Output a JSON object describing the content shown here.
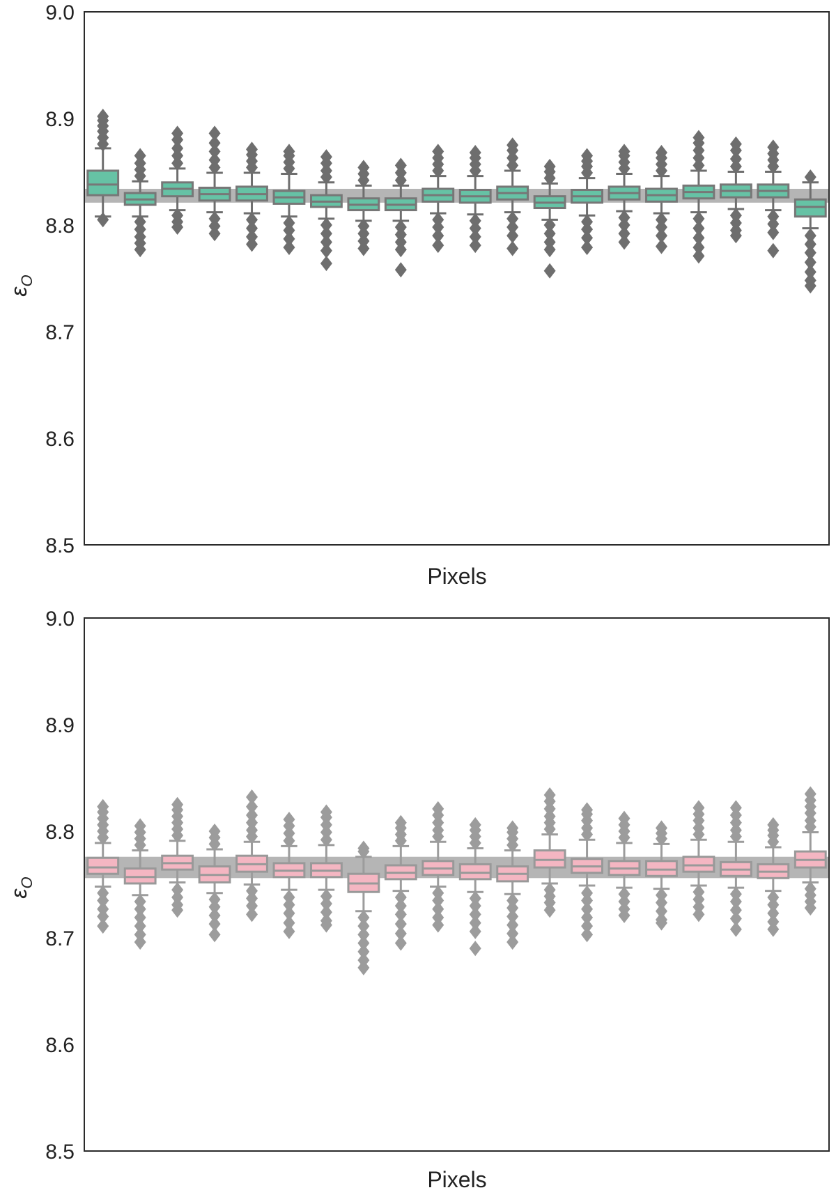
{
  "colors": {
    "grid_band": "#a8a8a8",
    "axis": "#2a2a2a",
    "whisker_top": "#6e6e6e",
    "whisker_bottom": "#9c9c9c",
    "box_fill_top": "#66c2a5",
    "box_fill_bottom": "#f4b6c2",
    "box_edge_top": "#777777",
    "box_edge_bottom": "#999999"
  },
  "chart_data": [
    {
      "type": "box",
      "title": "",
      "xlabel": "Pixels",
      "ylabel": "ε",
      "ylabel_sub": "O",
      "ylim": [
        8.5,
        9.0
      ],
      "yticks": [
        "8.5",
        "8.6",
        "8.7",
        "8.8",
        "8.9",
        "9.0"
      ],
      "xticks": [],
      "grid": false,
      "reference_band": [
        8.821,
        8.834
      ],
      "box_color": "#66c2a5",
      "boxes": [
        {
          "q1": 8.828,
          "median": 8.838,
          "q3": 8.851,
          "whislo": 8.808,
          "whishi": 8.872,
          "fliers_low": [
            8.805
          ],
          "fliers_high": [
            8.876,
            8.882,
            8.888,
            8.893,
            8.898,
            8.902
          ]
        },
        {
          "q1": 8.819,
          "median": 8.824,
          "q3": 8.83,
          "whislo": 8.808,
          "whishi": 8.841,
          "fliers_low": [
            8.803,
            8.796,
            8.789,
            8.783,
            8.777
          ],
          "fliers_high": [
            8.846,
            8.852,
            8.858,
            8.865
          ]
        },
        {
          "q1": 8.827,
          "median": 8.834,
          "q3": 8.84,
          "whislo": 8.814,
          "whishi": 8.853,
          "fliers_low": [
            8.809,
            8.803,
            8.798
          ],
          "fliers_high": [
            8.858,
            8.865,
            8.872,
            8.88,
            8.886
          ]
        },
        {
          "q1": 8.823,
          "median": 8.829,
          "q3": 8.835,
          "whislo": 8.812,
          "whishi": 8.849,
          "fliers_low": [
            8.806,
            8.799,
            8.792
          ],
          "fliers_high": [
            8.854,
            8.861,
            8.869,
            8.877,
            8.886
          ]
        },
        {
          "q1": 8.823,
          "median": 8.829,
          "q3": 8.836,
          "whislo": 8.811,
          "whishi": 8.849,
          "fliers_low": [
            8.805,
            8.797,
            8.789,
            8.782
          ],
          "fliers_high": [
            8.854,
            8.86,
            8.866,
            8.871
          ]
        },
        {
          "q1": 8.82,
          "median": 8.826,
          "q3": 8.832,
          "whislo": 8.808,
          "whishi": 8.848,
          "fliers_low": [
            8.802,
            8.795,
            8.787,
            8.779
          ],
          "fliers_high": [
            8.853,
            8.859,
            8.865,
            8.869
          ]
        },
        {
          "q1": 8.817,
          "median": 8.822,
          "q3": 8.828,
          "whislo": 8.806,
          "whishi": 8.84,
          "fliers_low": [
            8.8,
            8.792,
            8.784,
            8.776,
            8.764
          ],
          "fliers_high": [
            8.845,
            8.851,
            8.858,
            8.864
          ]
        },
        {
          "q1": 8.814,
          "median": 8.819,
          "q3": 8.825,
          "whislo": 8.804,
          "whishi": 8.837,
          "fliers_low": [
            8.799,
            8.792,
            8.785,
            8.778
          ],
          "fliers_high": [
            8.842,
            8.848,
            8.854
          ]
        },
        {
          "q1": 8.814,
          "median": 8.819,
          "q3": 8.825,
          "whislo": 8.804,
          "whishi": 8.837,
          "fliers_low": [
            8.798,
            8.791,
            8.784,
            8.777,
            8.758
          ],
          "fliers_high": [
            8.842,
            8.849,
            8.856
          ]
        },
        {
          "q1": 8.822,
          "median": 8.828,
          "q3": 8.834,
          "whislo": 8.811,
          "whishi": 8.846,
          "fliers_low": [
            8.805,
            8.798,
            8.79,
            8.781
          ],
          "fliers_high": [
            8.851,
            8.857,
            8.863,
            8.869
          ]
        },
        {
          "q1": 8.821,
          "median": 8.827,
          "q3": 8.833,
          "whislo": 8.81,
          "whishi": 8.846,
          "fliers_low": [
            8.804,
            8.797,
            8.789,
            8.781
          ],
          "fliers_high": [
            8.851,
            8.857,
            8.863,
            8.868
          ]
        },
        {
          "q1": 8.824,
          "median": 8.83,
          "q3": 8.836,
          "whislo": 8.812,
          "whishi": 8.851,
          "fliers_low": [
            8.806,
            8.798,
            8.79,
            8.778
          ],
          "fliers_high": [
            8.856,
            8.863,
            8.87,
            8.875
          ]
        },
        {
          "q1": 8.816,
          "median": 8.821,
          "q3": 8.827,
          "whislo": 8.805,
          "whishi": 8.839,
          "fliers_low": [
            8.8,
            8.792,
            8.784,
            8.777,
            8.757
          ],
          "fliers_high": [
            8.844,
            8.85,
            8.855
          ]
        },
        {
          "q1": 8.821,
          "median": 8.827,
          "q3": 8.833,
          "whislo": 8.809,
          "whishi": 8.844,
          "fliers_low": [
            8.803,
            8.796,
            8.788,
            8.779
          ],
          "fliers_high": [
            8.849,
            8.855,
            8.86,
            8.865
          ]
        },
        {
          "q1": 8.824,
          "median": 8.83,
          "q3": 8.836,
          "whislo": 8.813,
          "whishi": 8.848,
          "fliers_low": [
            8.807,
            8.8,
            8.792,
            8.784
          ],
          "fliers_high": [
            8.853,
            8.859,
            8.865,
            8.869
          ]
        },
        {
          "q1": 8.822,
          "median": 8.828,
          "q3": 8.834,
          "whislo": 8.811,
          "whishi": 8.846,
          "fliers_low": [
            8.805,
            8.798,
            8.79,
            8.78
          ],
          "fliers_high": [
            8.851,
            8.857,
            8.863,
            8.868
          ]
        },
        {
          "q1": 8.825,
          "median": 8.831,
          "q3": 8.837,
          "whislo": 8.812,
          "whishi": 8.851,
          "fliers_low": [
            8.806,
            8.797,
            8.788,
            8.779,
            8.771
          ],
          "fliers_high": [
            8.856,
            8.863,
            8.87,
            8.877,
            8.882
          ]
        },
        {
          "q1": 8.826,
          "median": 8.832,
          "q3": 8.838,
          "whislo": 8.815,
          "whishi": 8.85,
          "fliers_low": [
            8.809,
            8.802,
            8.795,
            8.79
          ],
          "fliers_high": [
            8.855,
            8.862,
            8.87,
            8.876
          ]
        },
        {
          "q1": 8.826,
          "median": 8.832,
          "q3": 8.838,
          "whislo": 8.814,
          "whishi": 8.85,
          "fliers_low": [
            8.808,
            8.801,
            8.793,
            8.776
          ],
          "fliers_high": [
            8.855,
            8.861,
            8.867,
            8.873
          ]
        },
        {
          "q1": 8.808,
          "median": 8.817,
          "q3": 8.824,
          "whislo": 8.797,
          "whishi": 8.84,
          "fliers_low": [
            8.79,
            8.782,
            8.774,
            8.765,
            8.756,
            8.748,
            8.743
          ],
          "fliers_high": [
            8.845
          ]
        }
      ]
    },
    {
      "type": "box",
      "title": "",
      "xlabel": "Pixels",
      "ylabel": "ε",
      "ylabel_sub": "O",
      "ylim": [
        8.5,
        9.0
      ],
      "yticks": [
        "8.5",
        "8.6",
        "8.7",
        "8.8",
        "8.9",
        "9.0"
      ],
      "xticks": [],
      "grid": false,
      "reference_band": [
        8.756,
        8.776
      ],
      "box_color": "#f4b6c2",
      "boxes": [
        {
          "q1": 8.76,
          "median": 8.766,
          "q3": 8.775,
          "whislo": 8.748,
          "whishi": 8.789,
          "fliers_low": [
            8.742,
            8.735,
            8.727,
            8.72,
            8.711
          ],
          "fliers_high": [
            8.794,
            8.8,
            8.806,
            8.812,
            8.818,
            8.823
          ]
        },
        {
          "q1": 8.751,
          "median": 8.757,
          "q3": 8.765,
          "whislo": 8.74,
          "whishi": 8.782,
          "fliers_low": [
            8.734,
            8.727,
            8.719,
            8.711,
            8.703,
            8.696
          ],
          "fliers_high": [
            8.787,
            8.793,
            8.799,
            8.805
          ]
        },
        {
          "q1": 8.764,
          "median": 8.77,
          "q3": 8.777,
          "whislo": 8.752,
          "whishi": 8.791,
          "fliers_low": [
            8.745,
            8.738,
            8.731,
            8.726
          ],
          "fliers_high": [
            8.796,
            8.802,
            8.808,
            8.814,
            8.82,
            8.825
          ]
        },
        {
          "q1": 8.752,
          "median": 8.759,
          "q3": 8.767,
          "whislo": 8.742,
          "whishi": 8.783,
          "fliers_low": [
            8.736,
            8.729,
            8.721,
            8.713,
            8.703
          ],
          "fliers_high": [
            8.788,
            8.794,
            8.8
          ]
        },
        {
          "q1": 8.762,
          "median": 8.769,
          "q3": 8.777,
          "whislo": 8.75,
          "whishi": 8.79,
          "fliers_low": [
            8.744,
            8.737,
            8.73,
            8.722
          ],
          "fliers_high": [
            8.795,
            8.801,
            8.808,
            8.815,
            8.823,
            8.832
          ]
        },
        {
          "q1": 8.757,
          "median": 8.763,
          "q3": 8.77,
          "whislo": 8.745,
          "whishi": 8.786,
          "fliers_low": [
            8.738,
            8.731,
            8.723,
            8.714,
            8.706
          ],
          "fliers_high": [
            8.791,
            8.798,
            8.805,
            8.811
          ]
        },
        {
          "q1": 8.757,
          "median": 8.763,
          "q3": 8.77,
          "whislo": 8.745,
          "whishi": 8.787,
          "fliers_low": [
            8.739,
            8.732,
            8.724,
            8.716,
            8.712
          ],
          "fliers_high": [
            8.792,
            8.799,
            8.806,
            8.813,
            8.818
          ]
        },
        {
          "q1": 8.743,
          "median": 8.751,
          "q3": 8.76,
          "whislo": 8.725,
          "whishi": 8.776,
          "fliers_low": [
            8.719,
            8.711,
            8.703,
            8.695,
            8.687,
            8.679,
            8.672
          ],
          "fliers_high": [
            8.781,
            8.784
          ]
        },
        {
          "q1": 8.755,
          "median": 8.761,
          "q3": 8.768,
          "whislo": 8.744,
          "whishi": 8.786,
          "fliers_low": [
            8.738,
            8.73,
            8.722,
            8.713,
            8.704,
            8.695
          ],
          "fliers_high": [
            8.791,
            8.797,
            8.803,
            8.808
          ]
        },
        {
          "q1": 8.759,
          "median": 8.765,
          "q3": 8.772,
          "whislo": 8.748,
          "whishi": 8.79,
          "fliers_low": [
            8.742,
            8.735,
            8.727,
            8.719,
            8.712
          ],
          "fliers_high": [
            8.795,
            8.801,
            8.808,
            8.815,
            8.821
          ]
        },
        {
          "q1": 8.755,
          "median": 8.761,
          "q3": 8.769,
          "whislo": 8.743,
          "whishi": 8.784,
          "fliers_low": [
            8.737,
            8.73,
            8.722,
            8.714,
            8.706,
            8.69
          ],
          "fliers_high": [
            8.789,
            8.795,
            8.801,
            8.806
          ]
        },
        {
          "q1": 8.753,
          "median": 8.76,
          "q3": 8.767,
          "whislo": 8.741,
          "whishi": 8.782,
          "fliers_low": [
            8.735,
            8.728,
            8.72,
            8.712,
            8.704,
            8.696
          ],
          "fliers_high": [
            8.787,
            8.793,
            8.799,
            8.803
          ]
        },
        {
          "q1": 8.766,
          "median": 8.773,
          "q3": 8.782,
          "whislo": 8.751,
          "whishi": 8.797,
          "fliers_low": [
            8.745,
            8.739,
            8.733,
            8.726
          ],
          "fliers_high": [
            8.802,
            8.808,
            8.814,
            8.821,
            8.828,
            8.834
          ]
        },
        {
          "q1": 8.761,
          "median": 8.767,
          "q3": 8.774,
          "whislo": 8.749,
          "whishi": 8.792,
          "fliers_low": [
            8.742,
            8.735,
            8.727,
            8.719,
            8.711,
            8.703
          ],
          "fliers_high": [
            8.797,
            8.803,
            8.81,
            8.816,
            8.82
          ]
        },
        {
          "q1": 8.759,
          "median": 8.765,
          "q3": 8.772,
          "whislo": 8.747,
          "whishi": 8.789,
          "fliers_low": [
            8.741,
            8.734,
            8.727,
            8.721
          ],
          "fliers_high": [
            8.794,
            8.8,
            8.806,
            8.812
          ]
        },
        {
          "q1": 8.758,
          "median": 8.764,
          "q3": 8.772,
          "whislo": 8.746,
          "whishi": 8.788,
          "fliers_low": [
            8.74,
            8.733,
            8.725,
            8.717,
            8.714
          ],
          "fliers_high": [
            8.793,
            8.798,
            8.803
          ]
        },
        {
          "q1": 8.762,
          "median": 8.768,
          "q3": 8.776,
          "whislo": 8.749,
          "whishi": 8.792,
          "fliers_low": [
            8.743,
            8.736,
            8.729,
            8.722
          ],
          "fliers_high": [
            8.797,
            8.803,
            8.81,
            8.816,
            8.822
          ]
        },
        {
          "q1": 8.758,
          "median": 8.764,
          "q3": 8.771,
          "whislo": 8.747,
          "whishi": 8.79,
          "fliers_low": [
            8.741,
            8.734,
            8.726,
            8.718,
            8.708
          ],
          "fliers_high": [
            8.795,
            8.801,
            8.808,
            8.815,
            8.822
          ]
        },
        {
          "q1": 8.756,
          "median": 8.762,
          "q3": 8.769,
          "whislo": 8.744,
          "whishi": 8.785,
          "fliers_low": [
            8.738,
            8.731,
            8.723,
            8.715,
            8.708
          ],
          "fliers_high": [
            8.79,
            8.796,
            8.801,
            8.806
          ]
        },
        {
          "q1": 8.766,
          "median": 8.773,
          "q3": 8.781,
          "whislo": 8.752,
          "whishi": 8.799,
          "fliers_low": [
            8.746,
            8.74,
            8.734,
            8.728
          ],
          "fliers_high": [
            8.804,
            8.81,
            8.817,
            8.823,
            8.829,
            8.835
          ]
        }
      ]
    }
  ]
}
